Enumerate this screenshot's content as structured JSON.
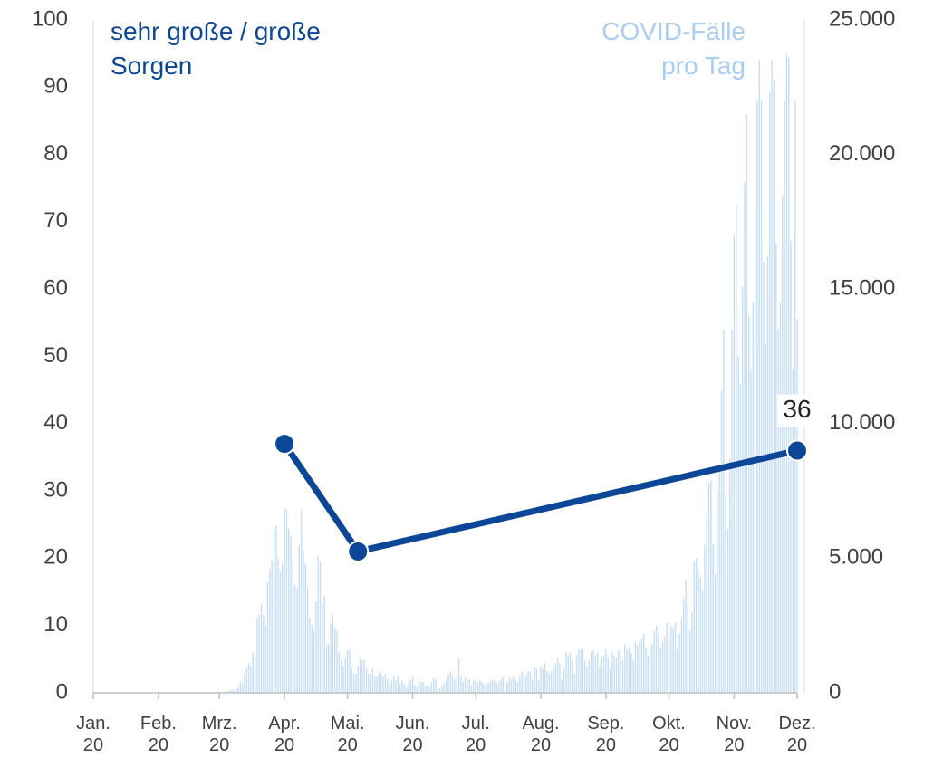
{
  "chart_data": {
    "type": "bar_line",
    "xlim": [
      0,
      335
    ],
    "xticks": [
      {
        "value": 0,
        "label": "Jan. 20"
      },
      {
        "value": 31,
        "label": "Feb. 20"
      },
      {
        "value": 60,
        "label": "Mrz. 20"
      },
      {
        "value": 91,
        "label": "Apr. 20"
      },
      {
        "value": 121,
        "label": "Mai. 20"
      },
      {
        "value": 152,
        "label": "Jun. 20"
      },
      {
        "value": 182,
        "label": "Jul. 20"
      },
      {
        "value": 213,
        "label": "Aug. 20"
      },
      {
        "value": 244,
        "label": "Sep. 20"
      },
      {
        "value": 274,
        "label": "Okt. 20"
      },
      {
        "value": 305,
        "label": "Nov. 20"
      },
      {
        "value": 335,
        "label": "Dez. 20"
      }
    ],
    "ylim": [
      0,
      100
    ],
    "yticks": [
      0,
      10,
      20,
      30,
      40,
      50,
      60,
      70,
      80,
      90,
      100
    ],
    "y2lim": [
      0,
      25000
    ],
    "y2ticks": [
      0,
      {
        "value": 5000,
        "label": "5.000"
      },
      {
        "value": 10000,
        "label": "10.000"
      },
      {
        "value": 15000,
        "label": "15.000"
      },
      {
        "value": 20000,
        "label": "20.000"
      },
      {
        "value": 25000,
        "label": "25.000"
      }
    ],
    "series": [
      {
        "name": "COVID-Fälle pro Tag",
        "type": "bar",
        "axis": "y2",
        "color": "#c6ddf6",
        "x": [
          61,
          62,
          63,
          64,
          65,
          66,
          67,
          68,
          69,
          70,
          71,
          72,
          73,
          74,
          75,
          76,
          77,
          78,
          79,
          80,
          81,
          82,
          83,
          84,
          85,
          86,
          87,
          88,
          89,
          90,
          91,
          92,
          93,
          94,
          95,
          96,
          97,
          98,
          99,
          100,
          101,
          102,
          103,
          104,
          105,
          106,
          107,
          108,
          109,
          110,
          111,
          112,
          113,
          114,
          115,
          116,
          117,
          118,
          119,
          120,
          121,
          122,
          123,
          124,
          125,
          126,
          127,
          128,
          129,
          130,
          131,
          132,
          133,
          134,
          135,
          136,
          137,
          138,
          139,
          140,
          141,
          142,
          143,
          144,
          145,
          146,
          147,
          148,
          149,
          150,
          151,
          152,
          153,
          154,
          155,
          156,
          157,
          158,
          159,
          160,
          161,
          162,
          163,
          164,
          165,
          166,
          167,
          168,
          169,
          170,
          171,
          172,
          173,
          174,
          175,
          176,
          177,
          178,
          179,
          180,
          181,
          182,
          183,
          184,
          185,
          186,
          187,
          188,
          189,
          190,
          191,
          192,
          193,
          194,
          195,
          196,
          197,
          198,
          199,
          200,
          201,
          202,
          203,
          204,
          205,
          206,
          207,
          208,
          209,
          210,
          211,
          212,
          213,
          214,
          215,
          216,
          217,
          218,
          219,
          220,
          221,
          222,
          223,
          224,
          225,
          226,
          227,
          228,
          229,
          230,
          231,
          232,
          233,
          234,
          235,
          236,
          237,
          238,
          239,
          240,
          241,
          242,
          243,
          244,
          245,
          246,
          247,
          248,
          249,
          250,
          251,
          252,
          253,
          254,
          255,
          256,
          257,
          258,
          259,
          260,
          261,
          262,
          263,
          264,
          265,
          266,
          267,
          268,
          269,
          270,
          271,
          272,
          273,
          274,
          275,
          276,
          277,
          278,
          279,
          280,
          281,
          282,
          283,
          284,
          285,
          286,
          287,
          288,
          289,
          290,
          291,
          292,
          293,
          294,
          295,
          296,
          297,
          298,
          299,
          300,
          301,
          302,
          303,
          304,
          305,
          306,
          307,
          308,
          309,
          310,
          311,
          312,
          313,
          314,
          315,
          316,
          317,
          318,
          319,
          320,
          321,
          322,
          323,
          324,
          325,
          326,
          327,
          328,
          329,
          330,
          331,
          332,
          333,
          334,
          335
        ],
        "values": [
          20,
          30,
          50,
          60,
          80,
          120,
          130,
          150,
          250,
          400,
          350,
          700,
          900,
          1100,
          1000,
          1500,
          1300,
          2800,
          2900,
          3300,
          2900,
          2500,
          4100,
          4600,
          4900,
          6000,
          6200,
          5000,
          4500,
          4800,
          6900,
          6800,
          6100,
          5800,
          4900,
          4000,
          3900,
          5500,
          6800,
          5300,
          4800,
          3900,
          2800,
          2500,
          2300,
          3400,
          5100,
          4900,
          3300,
          3600,
          1800,
          1800,
          2600,
          2900,
          2400,
          2300,
          1500,
          1200,
          1000,
          1300,
          1600,
          1600,
          900,
          700,
          700,
          1000,
          1300,
          1200,
          1200,
          900,
          700,
          700,
          900,
          600,
          600,
          800,
          700,
          600,
          700,
          500,
          300,
          450,
          600,
          450,
          600,
          350,
          450,
          300,
          200,
          350,
          500,
          600,
          300,
          200,
          500,
          400,
          400,
          300,
          250,
          250,
          400,
          550,
          500,
          200,
          150,
          300,
          350,
          500,
          700,
          800,
          600,
          500,
          600,
          1300,
          600,
          400,
          600,
          500,
          500,
          300,
          450,
          500,
          400,
          450,
          400,
          300,
          400,
          350,
          450,
          500,
          450,
          350,
          400,
          500,
          600,
          300,
          400,
          550,
          500,
          600,
          450,
          400,
          600,
          800,
          700,
          600,
          800,
          800,
          500,
          950,
          900,
          500,
          1000,
          900,
          1100,
          800,
          700,
          800,
          1000,
          1100,
          1300,
          1100,
          500,
          900,
          1500,
          1400,
          1500,
          1200,
          700,
          1400,
          1600,
          1600,
          1600,
          1200,
          1000,
          1200,
          1500,
          1600,
          1400,
          1500,
          1000,
          1300,
          1400,
          1600,
          1300,
          900,
          1500,
          1400,
          1300,
          1600,
          1400,
          1200,
          1800,
          1600,
          1700,
          1500,
          1200,
          1900,
          1800,
          1900,
          2000,
          2200,
          1700,
          1400,
          1700,
          1800,
          2300,
          2500,
          2200,
          1700,
          1900,
          2100,
          2600,
          2000,
          2500,
          2400,
          2600,
          1600,
          2200,
          2800,
          3500,
          4200,
          3300,
          2300,
          3000,
          4900,
          5000,
          4600,
          4300,
          3800,
          5500,
          6600,
          7800,
          7900,
          5500,
          4400,
          7500,
          8400,
          11200,
          13500,
          7400,
          6100,
          8700,
          13500,
          17000,
          18200,
          12500,
          11500,
          15100,
          19000,
          21500,
          14000,
          12000,
          14500,
          18000,
          22000,
          23500,
          22000,
          16000,
          13000,
          16200,
          22300,
          23500,
          22800,
          16700,
          13500,
          14500,
          18500,
          22000,
          23700,
          23600,
          16800,
          12000,
          22000,
          13900
        ]
      },
      {
        "name": "sehr große / große Sorgen",
        "type": "line",
        "axis": "y",
        "color": "#0b4697",
        "x": [
          91,
          126,
          335
        ],
        "values": [
          37,
          21,
          36
        ]
      }
    ]
  }
}
